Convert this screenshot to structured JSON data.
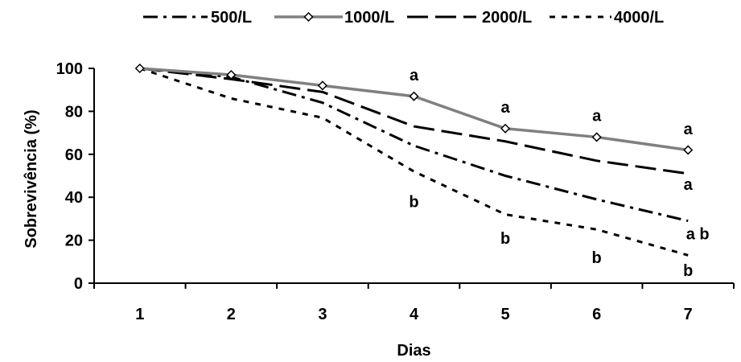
{
  "chart_data": {
    "type": "line",
    "title": "",
    "xlabel": "Dias",
    "ylabel": "Sobrevivência (%)",
    "categories": [
      "1",
      "2",
      "3",
      "4",
      "5",
      "6",
      "7"
    ],
    "x": [
      1,
      2,
      3,
      4,
      5,
      6,
      7
    ],
    "xlim": [
      0.5,
      7.5
    ],
    "ylim": [
      0,
      100
    ],
    "yticks": [
      "0",
      "20",
      "40",
      "60",
      "80",
      "100"
    ],
    "grid": false,
    "legend_position": "top",
    "series": [
      {
        "name": "500/L",
        "style": "dash-dot",
        "color": "#000000",
        "values": [
          100,
          96,
          84,
          64,
          50,
          39,
          29
        ]
      },
      {
        "name": "1000/L",
        "style": "solid-diamond",
        "color": "#808080",
        "values": [
          100,
          97,
          92,
          87,
          72,
          68,
          62
        ]
      },
      {
        "name": "2000/L",
        "style": "long-dash",
        "color": "#000000",
        "values": [
          100,
          95,
          89,
          73,
          66,
          57,
          51
        ]
      },
      {
        "name": "4000/L",
        "style": "dotted",
        "color": "#000000",
        "values": [
          100,
          86,
          77,
          52,
          32,
          25,
          13
        ]
      }
    ],
    "annotations": [
      {
        "text": "a",
        "x": 4,
        "y": 97
      },
      {
        "text": "a",
        "x": 5,
        "y": 82
      },
      {
        "text": "a",
        "x": 6,
        "y": 78
      },
      {
        "text": "a",
        "x": 7,
        "y": 72
      },
      {
        "text": "a",
        "x": 7,
        "y": 46
      },
      {
        "text": "a b",
        "x": 7,
        "y": 23
      },
      {
        "text": "b",
        "x": 7,
        "y": 6
      },
      {
        "text": "b",
        "x": 4,
        "y": 38
      },
      {
        "text": "b",
        "x": 5,
        "y": 21
      },
      {
        "text": "b",
        "x": 6,
        "y": 12
      }
    ]
  }
}
